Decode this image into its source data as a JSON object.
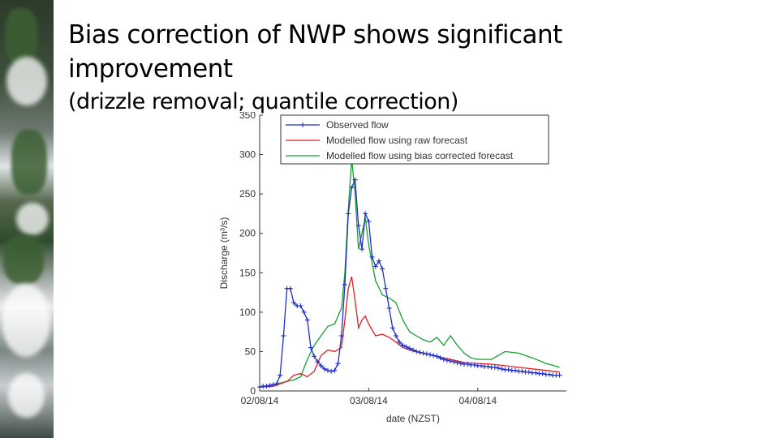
{
  "slide": {
    "title_line1": "Bias correction of NWP shows significant",
    "title_line2": "improvement",
    "subtitle": "(drizzle removal; quantile correction)"
  },
  "chart_data": {
    "type": "line",
    "xlabel": "date (NZST)",
    "ylabel": "Discharge (m³/s)",
    "ylim": [
      0,
      350
    ],
    "yticks": [
      0,
      50,
      100,
      150,
      200,
      250,
      300,
      350
    ],
    "xlim": [
      0,
      90
    ],
    "xticks": [
      0,
      32,
      64
    ],
    "xtick_labels": [
      "02/08/14",
      "03/08/14",
      "04/08/14"
    ],
    "grid": false,
    "legend_position": "top",
    "series": [
      {
        "name": "Observed flow",
        "color": "#1f2ecc",
        "marker": "plus",
        "x": [
          0,
          1,
          2,
          3,
          4,
          5,
          6,
          7,
          8,
          9,
          10,
          11,
          12,
          13,
          14,
          15,
          16,
          17,
          18,
          19,
          20,
          21,
          22,
          23,
          24,
          25,
          26,
          27,
          28,
          29,
          30,
          31,
          32,
          33,
          34,
          35,
          36,
          37,
          38,
          39,
          40,
          41,
          42,
          43,
          44,
          45,
          46,
          47,
          48,
          49,
          50,
          51,
          52,
          53,
          54,
          55,
          56,
          57,
          58,
          59,
          60,
          61,
          62,
          63,
          64,
          65,
          66,
          67,
          68,
          69,
          70,
          71,
          72,
          73,
          74,
          75,
          76,
          77,
          78,
          79,
          80,
          81,
          82,
          83,
          84,
          85,
          86,
          87,
          88
        ],
        "values": [
          5,
          6,
          6,
          7,
          8,
          9,
          20,
          70,
          130,
          130,
          112,
          108,
          108,
          100,
          90,
          55,
          44,
          37,
          32,
          28,
          26,
          25,
          26,
          35,
          70,
          135,
          225,
          258,
          268,
          210,
          180,
          225,
          215,
          170,
          158,
          165,
          155,
          130,
          105,
          80,
          70,
          62,
          58,
          56,
          54,
          52,
          50,
          49,
          48,
          47,
          46,
          45,
          44,
          42,
          40,
          39,
          38,
          37,
          36,
          35,
          34,
          34,
          33,
          33,
          32,
          32,
          31,
          31,
          30,
          30,
          29,
          28,
          27,
          27,
          26,
          26,
          25,
          25,
          24,
          24,
          23,
          23,
          22,
          22,
          21,
          21,
          20,
          20,
          20
        ]
      },
      {
        "name": "Modelled flow using raw forecast",
        "color": "#e02020",
        "marker": "none",
        "x": [
          0,
          4,
          8,
          10,
          12,
          14,
          16,
          18,
          20,
          22,
          24,
          25,
          26,
          27,
          28,
          29,
          30,
          31,
          32,
          34,
          36,
          38,
          40,
          42,
          44,
          46,
          48,
          50,
          52,
          54,
          56,
          58,
          60,
          64,
          68,
          72,
          76,
          80,
          84,
          88
        ],
        "values": [
          5,
          6,
          12,
          20,
          22,
          18,
          25,
          45,
          52,
          50,
          55,
          90,
          130,
          145,
          115,
          80,
          90,
          95,
          85,
          70,
          72,
          68,
          62,
          55,
          52,
          50,
          48,
          46,
          44,
          42,
          40,
          38,
          36,
          35,
          34,
          32,
          30,
          28,
          26,
          24
        ]
      },
      {
        "name": "Modelled flow using bias corrected forecast",
        "color": "#16a032",
        "marker": "none",
        "x": [
          0,
          4,
          8,
          10,
          12,
          14,
          16,
          18,
          20,
          22,
          24,
          25,
          26,
          27,
          28,
          29,
          30,
          31,
          32,
          34,
          36,
          38,
          40,
          42,
          44,
          46,
          48,
          50,
          52,
          54,
          56,
          58,
          60,
          62,
          64,
          68,
          72,
          76,
          80,
          84,
          88
        ],
        "values": [
          5,
          8,
          12,
          14,
          18,
          40,
          58,
          70,
          82,
          85,
          105,
          150,
          230,
          295,
          250,
          180,
          200,
          220,
          185,
          140,
          122,
          118,
          112,
          90,
          75,
          70,
          65,
          62,
          68,
          58,
          70,
          58,
          48,
          42,
          40,
          40,
          50,
          48,
          42,
          35,
          30
        ]
      }
    ]
  }
}
